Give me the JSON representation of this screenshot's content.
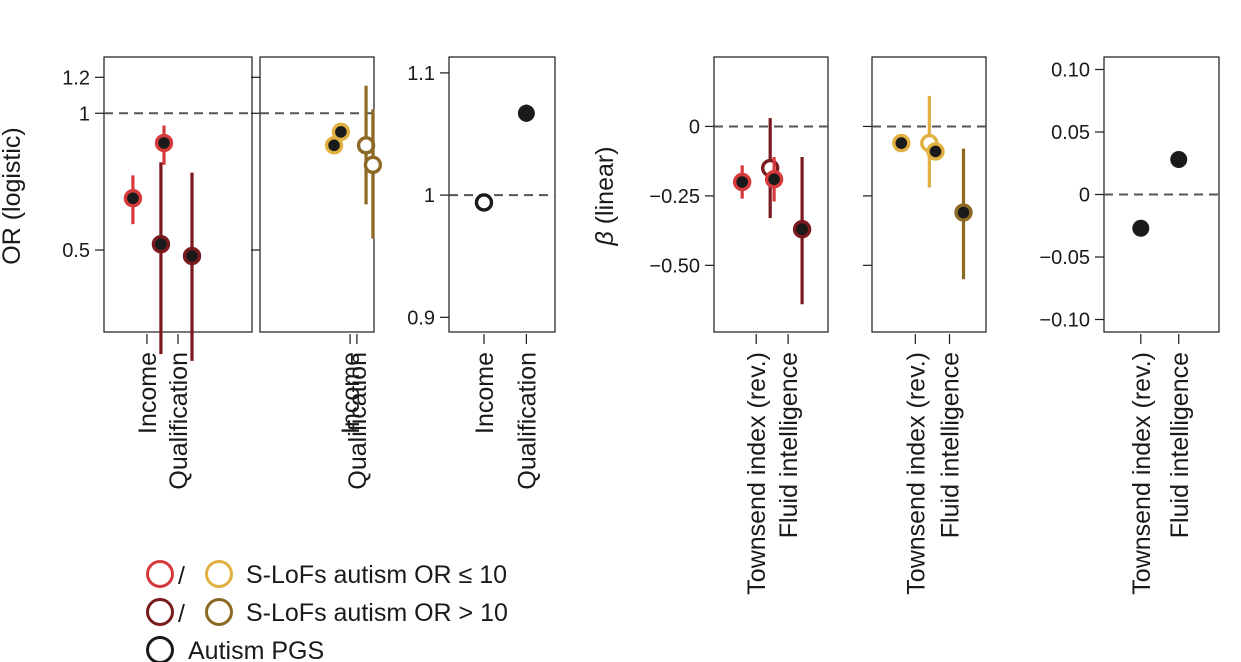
{
  "figure": {
    "ylabel_left": "OR (logistic)",
    "ylabel_beta_prefix": "β",
    "ylabel_beta_suffix": " (linear)"
  },
  "legend": [
    {
      "colors": [
        "#d63a3a",
        "#e0b040"
      ],
      "separator": "/",
      "label": "S-LoFs autism OR ≤ 10"
    },
    {
      "colors": [
        "#7a1a1e",
        "#8c6a24"
      ],
      "separator": "/",
      "label": "S-LoFs autism OR > 10"
    },
    {
      "colors": [
        "#1a1a1a"
      ],
      "separator": "",
      "label": "Autism PGS"
    }
  ],
  "chart_data": [
    {
      "type": "scatter",
      "scale": "log",
      "ylim": [
        0.33,
        1.33
      ],
      "ticks": [
        {
          "value": 0.5,
          "label": "0.5"
        },
        {
          "value": 1,
          "label": "1"
        },
        {
          "value": 1.2,
          "label": "1.2"
        }
      ],
      "ref_line": 1,
      "categories": [
        "Income",
        "Qualification"
      ],
      "points": [
        {
          "category": 0,
          "offset": -1,
          "value": 0.65,
          "lo": 0.57,
          "hi": 0.73,
          "ring": "#d63a3a",
          "fill": "#1a1a1a"
        },
        {
          "category": 0,
          "offset": 1,
          "value": 0.515,
          "lo": 0.295,
          "hi": 0.78,
          "ring": "#7a1a1e",
          "fill": "#1a1a1a"
        },
        {
          "category": 1,
          "offset": -1,
          "value": 0.86,
          "lo": 0.77,
          "hi": 0.94,
          "ring": "#d63a3a",
          "fill": "#1a1a1a"
        },
        {
          "category": 1,
          "offset": 1,
          "value": 0.485,
          "lo": 0.285,
          "hi": 0.74,
          "ring": "#7a1a1e",
          "fill": "#1a1a1a"
        }
      ]
    },
    {
      "type": "scatter",
      "scale": "log",
      "ylim": [
        0.33,
        1.33
      ],
      "ticks": [
        {
          "value": 0.5,
          "label": ""
        },
        {
          "value": 1,
          "label": ""
        },
        {
          "value": 1.2,
          "label": ""
        }
      ],
      "ref_line": 1,
      "categories": [
        "Income",
        "Qualification"
      ],
      "points": [
        {
          "category": 0,
          "offset": -1,
          "value": 0.85,
          "lo": 0.85,
          "hi": 0.85,
          "ring": "#e0b040",
          "fill": "#1a1a1a"
        },
        {
          "category": 0,
          "offset": 1,
          "value": 0.85,
          "lo": 0.63,
          "hi": 1.15,
          "ring": "#8c6a24",
          "fill": "#ffffff"
        },
        {
          "category": 1,
          "offset": -1,
          "value": 0.91,
          "lo": 0.91,
          "hi": 0.91,
          "ring": "#e0b040",
          "fill": "#1a1a1a"
        },
        {
          "category": 1,
          "offset": 1,
          "value": 0.77,
          "lo": 0.53,
          "hi": 1.02,
          "ring": "#8c6a24",
          "fill": "#ffffff"
        }
      ]
    },
    {
      "type": "scatter",
      "scale": "linear",
      "ylim": [
        0.888,
        1.113
      ],
      "ticks": [
        {
          "value": 0.9,
          "label": "0.9"
        },
        {
          "value": 1,
          "label": "1"
        },
        {
          "value": 1.1,
          "label": "1.1"
        }
      ],
      "ref_line": 1,
      "categories": [
        "Income",
        "Qualification"
      ],
      "points": [
        {
          "category": 0,
          "offset": 0,
          "value": 0.994,
          "lo": 0.988,
          "hi": 1.0,
          "ring": "#1a1a1a",
          "fill": "#ffffff"
        },
        {
          "category": 1,
          "offset": 0,
          "value": 1.067,
          "lo": 1.06,
          "hi": 1.074,
          "ring": "#1a1a1a",
          "fill": "#1a1a1a"
        }
      ]
    },
    {
      "type": "scatter",
      "scale": "linear",
      "ylim": [
        -0.74,
        0.25
      ],
      "ticks": [
        {
          "value": -0.5,
          "label": "−0.50"
        },
        {
          "value": -0.25,
          "label": "−0.25"
        },
        {
          "value": 0,
          "label": "0"
        }
      ],
      "ref_line": 0,
      "categories": [
        "Townsend index (rev.)",
        "Fluid intelligence"
      ],
      "points": [
        {
          "category": 0,
          "offset": -1,
          "value": -0.2,
          "lo": -0.26,
          "hi": -0.14,
          "ring": "#d63a3a",
          "fill": "#1a1a1a"
        },
        {
          "category": 0,
          "offset": 1,
          "value": -0.15,
          "lo": -0.33,
          "hi": 0.03,
          "ring": "#7a1a1e",
          "fill": "#ffffff"
        },
        {
          "category": 1,
          "offset": -1,
          "value": -0.19,
          "lo": -0.27,
          "hi": -0.11,
          "ring": "#d63a3a",
          "fill": "#1a1a1a"
        },
        {
          "category": 1,
          "offset": 1,
          "value": -0.37,
          "lo": -0.64,
          "hi": -0.11,
          "ring": "#7a1a1e",
          "fill": "#1a1a1a"
        }
      ]
    },
    {
      "type": "scatter",
      "scale": "linear",
      "ylim": [
        -0.74,
        0.25
      ],
      "ticks": [
        {
          "value": -0.5,
          "label": ""
        },
        {
          "value": -0.25,
          "label": ""
        },
        {
          "value": 0,
          "label": ""
        }
      ],
      "ref_line": 0,
      "categories": [
        "Townsend index (rev.)",
        "Fluid intelligence"
      ],
      "points": [
        {
          "category": 0,
          "offset": -1,
          "value": -0.06,
          "lo": -0.06,
          "hi": -0.06,
          "ring": "#e0b040",
          "fill": "#1a1a1a"
        },
        {
          "category": 0,
          "offset": 1,
          "value": -0.06,
          "lo": -0.22,
          "hi": 0.11,
          "ring": "#e0b040",
          "fill": "#ffffff"
        },
        {
          "category": 1,
          "offset": -1,
          "value": -0.09,
          "lo": -0.09,
          "hi": -0.09,
          "ring": "#e0b040",
          "fill": "#1a1a1a"
        },
        {
          "category": 1,
          "offset": 1,
          "value": -0.31,
          "lo": -0.55,
          "hi": -0.08,
          "ring": "#8c6a24",
          "fill": "#1a1a1a"
        }
      ]
    },
    {
      "type": "scatter",
      "scale": "linear",
      "ylim": [
        -0.11,
        0.11
      ],
      "ticks": [
        {
          "value": -0.1,
          "label": "−0.10"
        },
        {
          "value": -0.05,
          "label": "−0.05"
        },
        {
          "value": 0,
          "label": "0"
        },
        {
          "value": 0.05,
          "label": "0.05"
        },
        {
          "value": 0.1,
          "label": "0.10"
        }
      ],
      "ref_line": 0,
      "categories": [
        "Townsend index (rev.)",
        "Fluid intelligence"
      ],
      "points": [
        {
          "category": 0,
          "offset": 0,
          "value": -0.027,
          "lo": -0.027,
          "hi": -0.027,
          "ring": "#1a1a1a",
          "fill": "#1a1a1a"
        },
        {
          "category": 1,
          "offset": 0,
          "value": 0.028,
          "lo": 0.028,
          "hi": 0.028,
          "ring": "#1a1a1a",
          "fill": "#1a1a1a"
        }
      ]
    }
  ]
}
